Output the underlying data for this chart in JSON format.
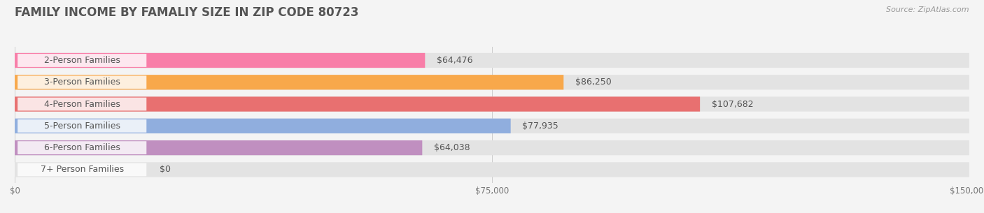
{
  "title": "FAMILY INCOME BY FAMALIY SIZE IN ZIP CODE 80723",
  "source": "Source: ZipAtlas.com",
  "categories": [
    "2-Person Families",
    "3-Person Families",
    "4-Person Families",
    "5-Person Families",
    "6-Person Families",
    "7+ Person Families"
  ],
  "values": [
    64476,
    86250,
    107682,
    77935,
    64038,
    0
  ],
  "bar_colors": [
    "#F87EA8",
    "#F8A84B",
    "#E87070",
    "#90AEDE",
    "#C08FC0",
    "#7ACFCA"
  ],
  "value_labels": [
    "$64,476",
    "$86,250",
    "$107,682",
    "$77,935",
    "$64,038",
    "$0"
  ],
  "xlim": [
    0,
    150000
  ],
  "xticks": [
    0,
    75000,
    150000
  ],
  "xtick_labels": [
    "$0",
    "$75,000",
    "$150,000"
  ],
  "bg_color": "#f4f4f4",
  "bar_bg_color": "#e3e3e3",
  "title_color": "#555555",
  "title_fontsize": 12,
  "bar_height": 0.68,
  "value_fontsize": 9,
  "label_fontsize": 9,
  "source_fontsize": 8
}
